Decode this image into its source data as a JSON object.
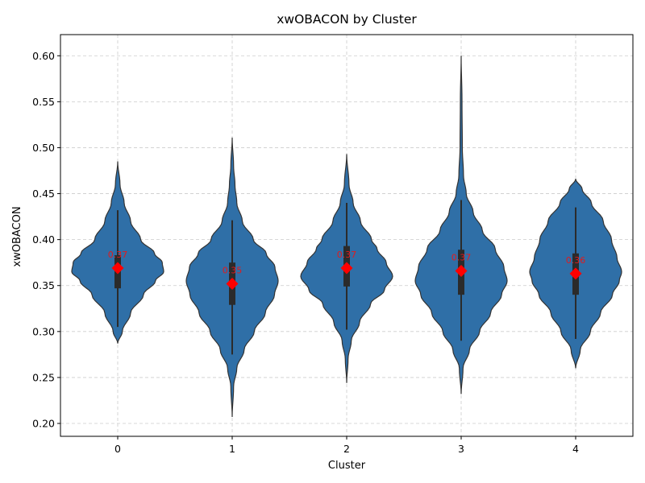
{
  "chart_data": {
    "type": "violin",
    "title": "xwOBACON by Cluster",
    "xlabel": "Cluster",
    "ylabel": "xwOBACON",
    "ylim": [
      0.186,
      0.623
    ],
    "yticks": [
      0.2,
      0.25,
      0.3,
      0.35,
      0.4,
      0.45,
      0.5,
      0.55,
      0.6
    ],
    "ytick_labels": [
      "0.20",
      "0.25",
      "0.30",
      "0.35",
      "0.40",
      "0.45",
      "0.50",
      "0.55",
      "0.60"
    ],
    "grid": true,
    "violin_color": "#2f6fa7",
    "mean_color": "#ff0000",
    "clusters": [
      {
        "label": "0",
        "mean": 0.369,
        "mean_label": "0.37",
        "q1": 0.347,
        "q3": 0.383,
        "whisker_low": 0.305,
        "whisker_high": 0.432,
        "min": 0.287,
        "max": 0.485,
        "profile": [
          [
            0.287,
            0
          ],
          [
            0.3,
            0.1
          ],
          [
            0.32,
            0.28
          ],
          [
            0.34,
            0.56
          ],
          [
            0.355,
            0.82
          ],
          [
            0.365,
            1.0
          ],
          [
            0.375,
            0.97
          ],
          [
            0.385,
            0.8
          ],
          [
            0.4,
            0.5
          ],
          [
            0.42,
            0.28
          ],
          [
            0.44,
            0.14
          ],
          [
            0.46,
            0.05
          ],
          [
            0.485,
            0
          ]
        ]
      },
      {
        "label": "1",
        "mean": 0.352,
        "mean_label": "0.35",
        "q1": 0.329,
        "q3": 0.375,
        "whisker_low": 0.275,
        "whisker_high": 0.421,
        "min": 0.207,
        "max": 0.511,
        "profile": [
          [
            0.207,
            0
          ],
          [
            0.24,
            0.03
          ],
          [
            0.26,
            0.1
          ],
          [
            0.28,
            0.26
          ],
          [
            0.3,
            0.48
          ],
          [
            0.32,
            0.72
          ],
          [
            0.34,
            0.92
          ],
          [
            0.355,
            1.0
          ],
          [
            0.37,
            0.93
          ],
          [
            0.385,
            0.74
          ],
          [
            0.4,
            0.46
          ],
          [
            0.42,
            0.22
          ],
          [
            0.44,
            0.1
          ],
          [
            0.46,
            0.06
          ],
          [
            0.48,
            0.03
          ],
          [
            0.511,
            0
          ]
        ]
      },
      {
        "label": "2",
        "mean": 0.369,
        "mean_label": "0.37",
        "q1": 0.349,
        "q3": 0.393,
        "whisker_low": 0.302,
        "whisker_high": 0.44,
        "min": 0.244,
        "max": 0.493,
        "profile": [
          [
            0.244,
            0
          ],
          [
            0.27,
            0.03
          ],
          [
            0.29,
            0.1
          ],
          [
            0.31,
            0.28
          ],
          [
            0.33,
            0.52
          ],
          [
            0.345,
            0.82
          ],
          [
            0.36,
            1.0
          ],
          [
            0.375,
            0.86
          ],
          [
            0.39,
            0.66
          ],
          [
            0.4,
            0.54
          ],
          [
            0.42,
            0.3
          ],
          [
            0.44,
            0.14
          ],
          [
            0.46,
            0.05
          ],
          [
            0.493,
            0
          ]
        ]
      },
      {
        "label": "3",
        "mean": 0.366,
        "mean_label": "0.37",
        "q1": 0.34,
        "q3": 0.389,
        "whisker_low": 0.29,
        "whisker_high": 0.443,
        "min": 0.232,
        "max": 0.602,
        "profile": [
          [
            0.232,
            0
          ],
          [
            0.26,
            0.04
          ],
          [
            0.28,
            0.18
          ],
          [
            0.3,
            0.4
          ],
          [
            0.32,
            0.64
          ],
          [
            0.34,
            0.88
          ],
          [
            0.355,
            1.0
          ],
          [
            0.37,
            0.93
          ],
          [
            0.39,
            0.74
          ],
          [
            0.41,
            0.46
          ],
          [
            0.43,
            0.26
          ],
          [
            0.45,
            0.11
          ],
          [
            0.47,
            0.05
          ],
          [
            0.5,
            0.025
          ],
          [
            0.55,
            0.018
          ],
          [
            0.6,
            0
          ]
        ]
      },
      {
        "label": "4",
        "mean": 0.363,
        "mean_label": "0.36",
        "q1": 0.34,
        "q3": 0.385,
        "whisker_low": 0.292,
        "whisker_high": 0.435,
        "min": 0.26,
        "max": 0.466,
        "profile": [
          [
            0.26,
            0
          ],
          [
            0.28,
            0.1
          ],
          [
            0.3,
            0.32
          ],
          [
            0.32,
            0.54
          ],
          [
            0.34,
            0.8
          ],
          [
            0.355,
            0.95
          ],
          [
            0.365,
            1.0
          ],
          [
            0.38,
            0.9
          ],
          [
            0.4,
            0.78
          ],
          [
            0.42,
            0.6
          ],
          [
            0.44,
            0.34
          ],
          [
            0.455,
            0.14
          ],
          [
            0.466,
            0
          ]
        ]
      }
    ]
  }
}
